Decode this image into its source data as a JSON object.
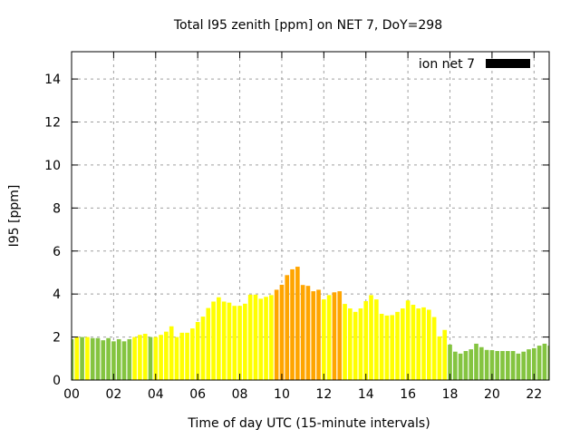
{
  "chart_data": {
    "type": "bar",
    "title": "Total I95 zenith [ppm] on NET 7, DoY=298",
    "xlabel": "Time of day UTC (15-minute intervals)",
    "ylabel": "I95 [ppm]",
    "xlim": [
      0,
      22.72
    ],
    "ylim": [
      0,
      15.27
    ],
    "grid": true,
    "legend_placement": "top-right",
    "legend": [
      {
        "name": "ion net 7",
        "color": "#000000"
      }
    ],
    "xticks": [
      {
        "v": 0,
        "label": "00"
      },
      {
        "v": 2,
        "label": "02"
      },
      {
        "v": 4,
        "label": "04"
      },
      {
        "v": 6,
        "label": "06"
      },
      {
        "v": 8,
        "label": "08"
      },
      {
        "v": 10,
        "label": "10"
      },
      {
        "v": 12,
        "label": "12"
      },
      {
        "v": 14,
        "label": "14"
      },
      {
        "v": 16,
        "label": "16"
      },
      {
        "v": 18,
        "label": "18"
      },
      {
        "v": 20,
        "label": "20"
      },
      {
        "v": 22,
        "label": "22"
      }
    ],
    "yticks": [
      {
        "v": 0,
        "label": "0"
      },
      {
        "v": 2,
        "label": "2"
      },
      {
        "v": 4,
        "label": "4"
      },
      {
        "v": 6,
        "label": "6"
      },
      {
        "v": 8,
        "label": "8"
      },
      {
        "v": 10,
        "label": "10"
      },
      {
        "v": 12,
        "label": "12"
      },
      {
        "v": 14,
        "label": "14"
      }
    ],
    "interval_hours": 0.25,
    "color_map": {
      "g": "#84c440",
      "y": "#ffff00",
      "o": "#ffa500"
    },
    "values": [
      1.9,
      2.0,
      2.0,
      2.0,
      1.95,
      1.95,
      1.85,
      1.95,
      1.8,
      1.9,
      1.8,
      1.9,
      2.0,
      2.1,
      2.15,
      2.0,
      2.0,
      2.1,
      2.25,
      2.5,
      2.0,
      2.2,
      2.2,
      2.4,
      2.7,
      2.95,
      3.35,
      3.65,
      3.85,
      3.65,
      3.6,
      3.45,
      3.45,
      3.55,
      3.97,
      3.97,
      3.78,
      3.87,
      3.95,
      4.2,
      4.43,
      4.88,
      5.15,
      5.27,
      4.42,
      4.38,
      4.13,
      4.2,
      3.75,
      3.95,
      4.08,
      4.13,
      3.54,
      3.33,
      3.17,
      3.33,
      3.67,
      3.95,
      3.75,
      3.08,
      3.0,
      3.02,
      3.17,
      3.33,
      3.7,
      3.5,
      3.33,
      3.38,
      3.27,
      2.93,
      2.03,
      2.33,
      1.65,
      1.32,
      1.23,
      1.35,
      1.43,
      1.69,
      1.53,
      1.4,
      1.39,
      1.35,
      1.35,
      1.35,
      1.35,
      1.23,
      1.32,
      1.43,
      1.48,
      1.6,
      1.69,
      1.6
    ],
    "colors": [
      "g",
      "y",
      "g",
      "y",
      "g",
      "g",
      "g",
      "g",
      "g",
      "g",
      "g",
      "g",
      "y",
      "y",
      "y",
      "g",
      "y",
      "y",
      "y",
      "y",
      "y",
      "y",
      "y",
      "y",
      "y",
      "y",
      "y",
      "y",
      "y",
      "y",
      "y",
      "y",
      "y",
      "y",
      "y",
      "y",
      "y",
      "y",
      "y",
      "o",
      "o",
      "o",
      "o",
      "o",
      "o",
      "o",
      "o",
      "o",
      "y",
      "y",
      "o",
      "o",
      "y",
      "y",
      "y",
      "y",
      "y",
      "y",
      "y",
      "y",
      "y",
      "y",
      "y",
      "y",
      "y",
      "y",
      "y",
      "y",
      "y",
      "y",
      "y",
      "y",
      "g",
      "g",
      "g",
      "g",
      "g",
      "g",
      "g",
      "g",
      "g",
      "g",
      "g",
      "g",
      "g",
      "g",
      "g",
      "g",
      "g",
      "g",
      "g",
      "g"
    ]
  }
}
